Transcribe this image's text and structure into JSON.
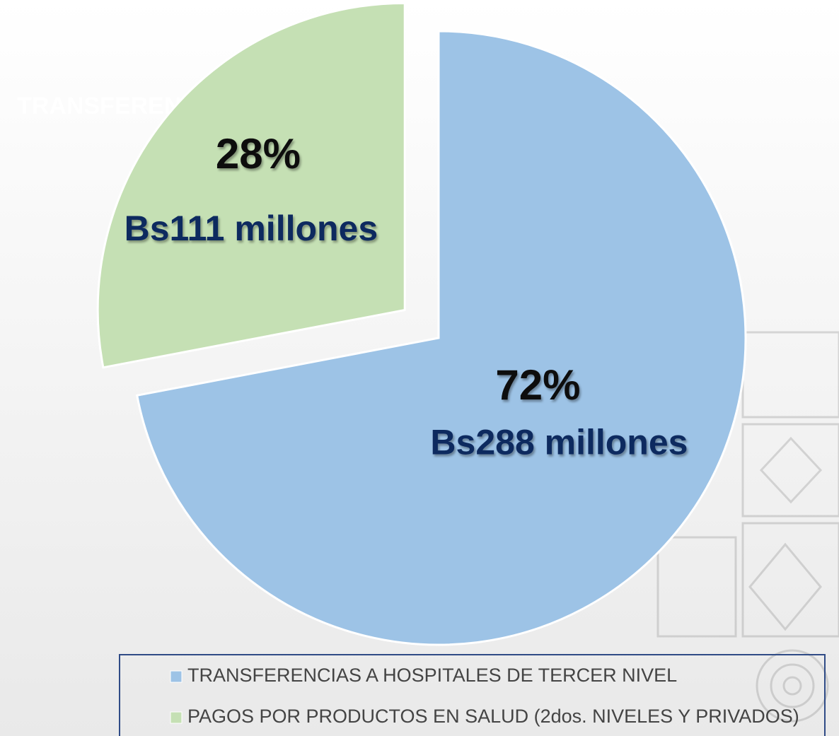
{
  "chart_data": {
    "type": "pie",
    "background_text": "TRANSFEREN",
    "categories": [
      "TRANSFERENCIAS A HOSPITALES DE TERCER NIVEL",
      "PAGOS POR PRODUCTOS EN SALUD (2dos. NIVELES Y PRIVADOS)"
    ],
    "values": [
      72,
      28
    ],
    "value_labels": [
      "72%",
      "28%"
    ],
    "amount_labels": [
      "Bs288 millones",
      "Bs111 millones"
    ],
    "colors": [
      "#9dc3e6",
      "#c5e0b4"
    ],
    "exploded": [
      false,
      true
    ]
  }
}
